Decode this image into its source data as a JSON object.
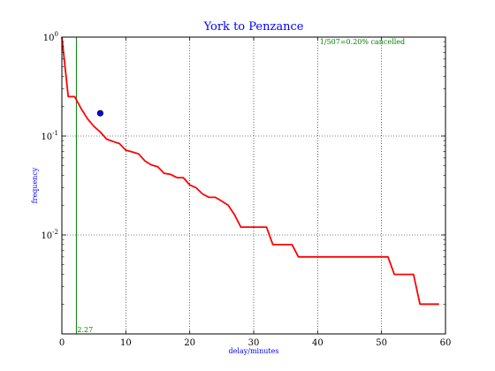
{
  "chart_data": {
    "type": "line",
    "title": "York to Penzance",
    "xlabel": "delay/minutes",
    "ylabel": "frequency",
    "xlim": [
      0,
      60
    ],
    "ylim": [
      0.001,
      1.0
    ],
    "yscale": "log",
    "grid": true,
    "x_ticks": [
      {
        "value": 0,
        "label": "0"
      },
      {
        "value": 10,
        "label": "10"
      },
      {
        "value": 20,
        "label": "20"
      },
      {
        "value": 30,
        "label": "30"
      },
      {
        "value": 40,
        "label": "40"
      },
      {
        "value": 50,
        "label": "50"
      },
      {
        "value": 60,
        "label": "60"
      }
    ],
    "y_ticks": [
      {
        "value": 1.0,
        "base": "10",
        "exp": "0"
      },
      {
        "value": 0.1,
        "base": "10",
        "exp": "-1"
      },
      {
        "value": 0.01,
        "base": "10",
        "exp": "-2"
      }
    ],
    "series": [
      {
        "color": "#ff0000",
        "x": [
          0,
          1,
          2,
          3,
          4,
          5,
          6,
          7,
          8,
          9,
          10,
          11,
          12,
          13,
          14,
          15,
          16,
          17,
          18,
          19,
          20,
          21,
          22,
          23,
          24,
          25,
          26,
          27,
          28,
          29,
          30,
          31,
          32,
          33,
          34,
          35,
          36,
          37,
          38,
          39,
          40,
          41,
          42,
          43,
          44,
          45,
          46,
          47,
          48,
          49,
          50,
          51,
          52,
          53,
          54,
          55,
          56,
          57,
          58,
          59
        ],
        "y": [
          1.0,
          0.25,
          0.25,
          0.19,
          0.15,
          0.125,
          0.11,
          0.093,
          0.088,
          0.084,
          0.072,
          0.069,
          0.066,
          0.056,
          0.051,
          0.049,
          0.042,
          0.041,
          0.038,
          0.038,
          0.032,
          0.03,
          0.026,
          0.024,
          0.024,
          0.022,
          0.02,
          0.016,
          0.012,
          0.012,
          0.012,
          0.012,
          0.012,
          0.008,
          0.008,
          0.008,
          0.008,
          0.006,
          0.006,
          0.006,
          0.006,
          0.006,
          0.006,
          0.006,
          0.006,
          0.006,
          0.006,
          0.006,
          0.006,
          0.006,
          0.006,
          0.006,
          0.004,
          0.004,
          0.004,
          0.004,
          0.002,
          0.002,
          0.002,
          0.002
        ]
      }
    ],
    "point": {
      "x": 6,
      "y": 0.17,
      "color": "#0000ff"
    },
    "vline": {
      "x": 2.27,
      "label": "2.27",
      "color": "#007f00"
    },
    "annotation": {
      "text": "1/507=0.20% cancelled",
      "x": 47,
      "y": 0.85,
      "color": "#007f00"
    },
    "colors": {
      "title": "#0000ff",
      "axis_label": "#0000ff",
      "line": "#ff0000",
      "marker": "#0000ff",
      "marker_edge": "#000000",
      "vline": "#007f00"
    }
  }
}
